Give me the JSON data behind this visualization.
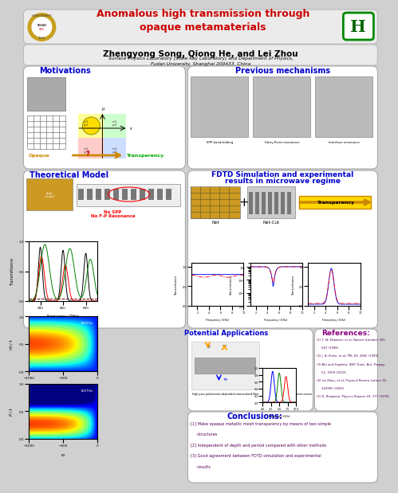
{
  "title": "Anomalous high transmission through\nopaque metamaterials",
  "authors": "Zhengyong Song, Qiong He, and Lei Zhou",
  "affiliation": "Surface Physics Laboratory (State Key Laboratory) and Department of Physics,\nFudan University, Shanghai 200433, China",
  "bg_color": "#d0d0d0",
  "title_color": "#cc0000",
  "section_colors": {
    "motivations": "#0000cc",
    "previous": "#0000cc",
    "theoretical": "#0000cc",
    "fdtd": "#0000cc",
    "potential": "#0000cc",
    "references": "#8b0080",
    "conclusions": "#0000cc"
  },
  "conclusions_text": [
    "[1] Make opaque metallic mesh transparency by means of two simple",
    "     structures",
    "[2] Independent of depth and period compared with other methods",
    "[3] Good agreement between FDTD simulation and experimental",
    "     results"
  ],
  "references_text": [
    "(1) T. W. Ebbesen, et al, Nature (London) 391,",
    "     667 (1998).",
    "(2) J. A. Porto, et al, PRL 83, 2845 (1999).",
    "(3) Alu and Engheta, IEEE Trans. Ant. Propag.",
    "     51, 2558 (2003).",
    "(4) Lei Zhou, et al, Physical Review Letters 94,",
    "     243905 (2005).",
    "(5) D. Bergman, Physics Reports 43, 377 (1978)."
  ]
}
